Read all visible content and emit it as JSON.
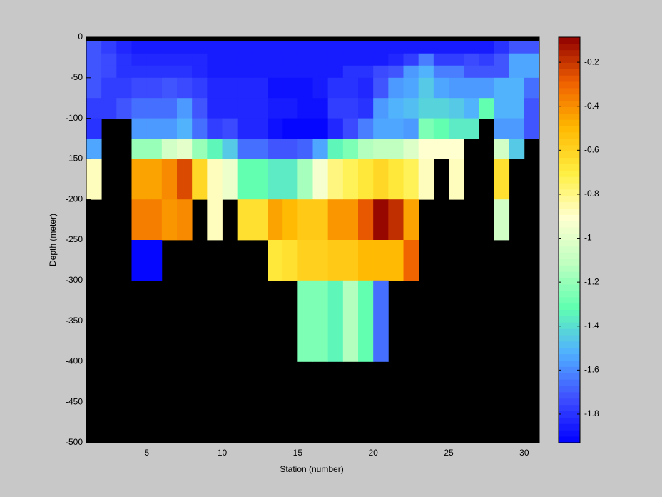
{
  "chart_data": {
    "type": "heatmap",
    "xlabel": "Station (number)",
    "ylabel": "Depth (meter)",
    "x": [
      1,
      2,
      3,
      4,
      5,
      6,
      7,
      8,
      9,
      10,
      11,
      12,
      13,
      14,
      15,
      16,
      17,
      18,
      19,
      20,
      21,
      22,
      23,
      24,
      25,
      26,
      27,
      28,
      29,
      30,
      31
    ],
    "y": [
      -5,
      -20,
      -35,
      -50,
      -75,
      -100,
      -125,
      -150,
      -200,
      -250,
      -300,
      -400
    ],
    "values": [
      [
        -1.72,
        -1.78,
        -1.82,
        -1.86,
        -1.86,
        -1.86,
        -1.86,
        -1.86,
        -1.86,
        -1.86,
        -1.86,
        -1.86,
        -1.86,
        -1.86,
        -1.86,
        -1.86,
        -1.86,
        -1.86,
        -1.86,
        -1.86,
        -1.86,
        -1.86,
        -1.86,
        -1.86,
        -1.86,
        -1.86,
        -1.86,
        -1.8,
        -1.72,
        -1.72
      ],
      [
        -1.72,
        -1.75,
        -1.8,
        -1.82,
        -1.82,
        -1.82,
        -1.82,
        -1.82,
        -1.86,
        -1.86,
        -1.86,
        -1.86,
        -1.86,
        -1.86,
        -1.86,
        -1.86,
        -1.86,
        -1.86,
        -1.86,
        -1.86,
        -1.82,
        -1.78,
        -1.62,
        -1.78,
        -1.78,
        -1.75,
        -1.78,
        -1.7,
        -1.55,
        -1.55
      ],
      [
        -1.72,
        -1.75,
        -1.8,
        -1.8,
        -1.8,
        -1.8,
        -1.8,
        -1.84,
        -1.86,
        -1.86,
        -1.86,
        -1.86,
        -1.86,
        -1.86,
        -1.86,
        -1.86,
        -1.86,
        -1.8,
        -1.8,
        -1.75,
        -1.7,
        -1.58,
        -1.5,
        -1.62,
        -1.62,
        -1.7,
        -1.7,
        -1.7,
        -1.55,
        -1.55
      ],
      [
        -1.72,
        -1.78,
        -1.78,
        -1.75,
        -1.75,
        -1.72,
        -1.75,
        -1.78,
        -1.82,
        -1.84,
        -1.84,
        -1.84,
        -1.88,
        -1.88,
        -1.88,
        -1.86,
        -1.8,
        -1.8,
        -1.84,
        -1.7,
        -1.58,
        -1.54,
        -1.45,
        -1.55,
        -1.56,
        -1.56,
        -1.56,
        -1.52,
        -1.52,
        -1.65
      ],
      [
        -1.78,
        -1.78,
        -1.72,
        -1.65,
        -1.65,
        -1.65,
        -1.58,
        -1.72,
        -1.82,
        -1.82,
        -1.84,
        -1.84,
        -1.86,
        -1.86,
        -1.9,
        -1.9,
        -1.78,
        -1.78,
        -1.8,
        -1.57,
        -1.5,
        -1.48,
        -1.42,
        -1.42,
        -1.45,
        -1.5,
        -1.32,
        -1.52,
        -1.52,
        -1.72
      ],
      [
        -1.8,
        null,
        null,
        -1.58,
        -1.58,
        -1.58,
        -1.5,
        -1.65,
        -1.78,
        -1.75,
        -1.84,
        -1.84,
        -1.9,
        -1.91,
        -1.93,
        -1.93,
        -1.82,
        -1.75,
        -1.62,
        -1.55,
        -1.55,
        -1.56,
        -1.25,
        -1.32,
        -1.38,
        -1.38,
        null,
        -1.58,
        -1.58,
        -1.72
      ],
      [
        -1.55,
        null,
        null,
        -1.2,
        -1.2,
        -1.05,
        -1.0,
        -1.2,
        -1.35,
        -1.45,
        -1.65,
        -1.65,
        -1.72,
        -1.72,
        -1.68,
        -1.55,
        -1.35,
        -1.25,
        -1.15,
        -1.1,
        -1.1,
        -1.02,
        -0.9,
        -0.9,
        -0.9,
        null,
        null,
        -1.05,
        -1.45,
        null
      ],
      [
        -0.88,
        null,
        null,
        -0.45,
        -0.45,
        -0.38,
        -0.25,
        -0.62,
        -0.88,
        -0.97,
        -1.3,
        -1.3,
        -1.38,
        -1.38,
        -1.18,
        -0.95,
        -0.8,
        -0.72,
        -0.68,
        -0.62,
        -0.68,
        -0.72,
        -0.88,
        null,
        -0.88,
        null,
        null,
        -0.65,
        null,
        null
      ],
      [
        null,
        null,
        null,
        -0.35,
        -0.35,
        -0.42,
        -0.38,
        null,
        -0.88,
        null,
        -0.65,
        -0.65,
        -0.45,
        -0.5,
        -0.57,
        -0.55,
        -0.42,
        -0.42,
        -0.28,
        -0.1,
        -0.18,
        -0.45,
        null,
        null,
        null,
        null,
        null,
        -1.05,
        null,
        null
      ],
      [
        null,
        null,
        null,
        -1.92,
        -1.92,
        null,
        null,
        null,
        null,
        null,
        null,
        null,
        -0.68,
        -0.65,
        -0.6,
        -0.6,
        -0.55,
        -0.55,
        -0.5,
        -0.5,
        -0.5,
        -0.3,
        null,
        null,
        null,
        null,
        null,
        null,
        null,
        null
      ],
      [
        null,
        null,
        null,
        null,
        null,
        null,
        null,
        null,
        null,
        null,
        null,
        null,
        null,
        null,
        -1.25,
        -1.25,
        -1.35,
        -1.15,
        -1.32,
        -1.65,
        null,
        null,
        null,
        null,
        null,
        null,
        null,
        null,
        null,
        null
      ]
    ],
    "xlim": [
      1,
      31
    ],
    "ylim": [
      -500,
      0
    ],
    "xticks": [
      5,
      10,
      15,
      20,
      25,
      30
    ],
    "yticks": [
      0,
      -50,
      -100,
      -150,
      -200,
      -250,
      -300,
      -350,
      -400,
      -450,
      -500
    ],
    "clim": [
      -1.93,
      -0.086
    ],
    "cticks": [
      -0.2,
      -0.4,
      -0.6,
      -0.8,
      -1,
      -1.2,
      -1.4,
      -1.6,
      -1.8
    ],
    "colormap": [
      "#0000ff",
      "#4050ff",
      "#50b0ff",
      "#60ffb0",
      "#c0ffc0",
      "#ffffd0",
      "#ffee40",
      "#ffb800",
      "#f06000",
      "#900000"
    ],
    "missing_color": "#000000"
  }
}
